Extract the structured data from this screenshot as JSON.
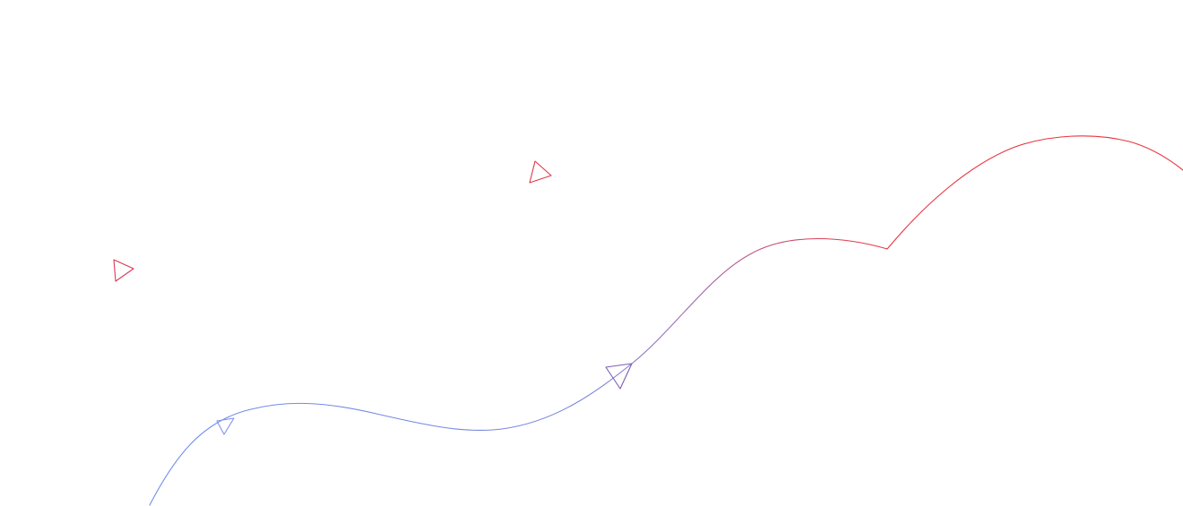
{
  "colors": {
    "background": "#ffffff",
    "start": "#6f8ff0",
    "end": "#e8323c",
    "mid": "#7a5fb0"
  },
  "elements": {
    "path": "gradient-curve-path",
    "markers": [
      "triangle-arrow-icon",
      "triangle-arrow-icon",
      "triangle-arrow-icon",
      "triangle-arrow-icon"
    ]
  }
}
